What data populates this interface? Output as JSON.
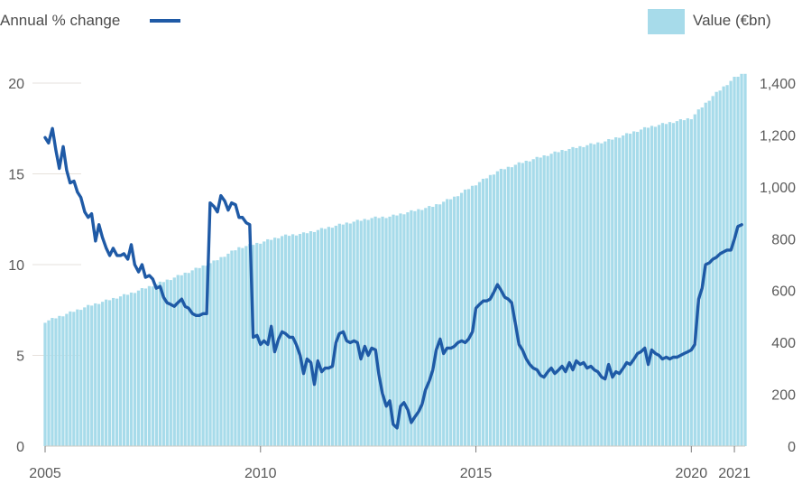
{
  "chart_data": {
    "type": "bar+line",
    "legend": {
      "line_label": "Annual % change",
      "bar_label": "Value (€bn)",
      "placement": "top"
    },
    "x_axis": {
      "range": [
        2005.0,
        2021.25
      ],
      "ticks": [
        2005,
        2010,
        2015,
        2020,
        2021
      ],
      "tick_labels": [
        "2005",
        "2010",
        "2015",
        "2020",
        "2021"
      ]
    },
    "y_left": {
      "range": [
        0,
        20
      ],
      "ticks": [
        0,
        5,
        10,
        15,
        20
      ],
      "tick_labels": [
        "0",
        "5",
        "10",
        "15",
        "20"
      ]
    },
    "y_right": {
      "range": [
        0,
        1400
      ],
      "ticks": [
        0,
        200,
        400,
        600,
        800,
        1000,
        1200,
        1400
      ],
      "tick_labels": [
        "0",
        "200",
        "400",
        "600",
        "800",
        "1,000",
        "1,200",
        "1,400"
      ]
    },
    "bar_series": {
      "name": "Value (€bn)",
      "color": "#a7dbea",
      "anchors": [
        [
          2005.0,
          480
        ],
        [
          2006.0,
          540
        ],
        [
          2007.0,
          590
        ],
        [
          2008.0,
          650
        ],
        [
          2008.9,
          710
        ],
        [
          2009.5,
          765
        ],
        [
          2010.0,
          785
        ],
        [
          2010.5,
          810
        ],
        [
          2011.0,
          820
        ],
        [
          2012.0,
          860
        ],
        [
          2012.6,
          880
        ],
        [
          2013.0,
          885
        ],
        [
          2013.5,
          905
        ],
        [
          2014.0,
          925
        ],
        [
          2014.5,
          960
        ],
        [
          2015.0,
          1010
        ],
        [
          2015.5,
          1060
        ],
        [
          2016.0,
          1090
        ],
        [
          2017.0,
          1140
        ],
        [
          2018.0,
          1175
        ],
        [
          2019.0,
          1230
        ],
        [
          2020.0,
          1265
        ],
        [
          2020.2,
          1300
        ],
        [
          2020.5,
          1350
        ],
        [
          2021.0,
          1420
        ],
        [
          2021.25,
          1440
        ]
      ]
    },
    "line_series": {
      "name": "Annual % change",
      "color": "#1f5aa6",
      "points": [
        [
          2005.0,
          17.0
        ],
        [
          2005.08,
          16.7
        ],
        [
          2005.17,
          17.5
        ],
        [
          2005.25,
          16.3
        ],
        [
          2005.33,
          15.3
        ],
        [
          2005.42,
          16.5
        ],
        [
          2005.5,
          15.2
        ],
        [
          2005.58,
          14.5
        ],
        [
          2005.67,
          14.6
        ],
        [
          2005.75,
          14.0
        ],
        [
          2005.83,
          13.7
        ],
        [
          2005.92,
          12.9
        ],
        [
          2006.0,
          12.6
        ],
        [
          2006.08,
          12.8
        ],
        [
          2006.17,
          11.3
        ],
        [
          2006.25,
          12.2
        ],
        [
          2006.33,
          11.5
        ],
        [
          2006.42,
          10.9
        ],
        [
          2006.5,
          10.5
        ],
        [
          2006.58,
          10.9
        ],
        [
          2006.67,
          10.5
        ],
        [
          2006.75,
          10.5
        ],
        [
          2006.83,
          10.6
        ],
        [
          2006.92,
          10.3
        ],
        [
          2007.0,
          11.1
        ],
        [
          2007.08,
          10.0
        ],
        [
          2007.17,
          9.6
        ],
        [
          2007.25,
          10.0
        ],
        [
          2007.33,
          9.3
        ],
        [
          2007.42,
          9.4
        ],
        [
          2007.5,
          9.2
        ],
        [
          2007.58,
          8.7
        ],
        [
          2007.67,
          8.8
        ],
        [
          2007.75,
          8.2
        ],
        [
          2007.83,
          7.9
        ],
        [
          2007.92,
          7.8
        ],
        [
          2008.0,
          7.7
        ],
        [
          2008.08,
          7.9
        ],
        [
          2008.17,
          8.1
        ],
        [
          2008.25,
          7.7
        ],
        [
          2008.33,
          7.6
        ],
        [
          2008.42,
          7.3
        ],
        [
          2008.5,
          7.2
        ],
        [
          2008.58,
          7.2
        ],
        [
          2008.67,
          7.3
        ],
        [
          2008.75,
          7.3
        ],
        [
          2008.83,
          13.4
        ],
        [
          2008.92,
          13.2
        ],
        [
          2009.0,
          12.9
        ],
        [
          2009.08,
          13.8
        ],
        [
          2009.17,
          13.5
        ],
        [
          2009.25,
          13.0
        ],
        [
          2009.33,
          13.4
        ],
        [
          2009.42,
          13.3
        ],
        [
          2009.5,
          12.6
        ],
        [
          2009.58,
          12.6
        ],
        [
          2009.67,
          12.3
        ],
        [
          2009.75,
          12.2
        ],
        [
          2009.83,
          6.0
        ],
        [
          2009.92,
          6.1
        ],
        [
          2010.0,
          5.6
        ],
        [
          2010.08,
          5.8
        ],
        [
          2010.17,
          5.6
        ],
        [
          2010.25,
          6.6
        ],
        [
          2010.33,
          5.2
        ],
        [
          2010.42,
          5.9
        ],
        [
          2010.5,
          6.3
        ],
        [
          2010.58,
          6.2
        ],
        [
          2010.67,
          6.0
        ],
        [
          2010.75,
          6.0
        ],
        [
          2010.83,
          5.6
        ],
        [
          2010.92,
          5.0
        ],
        [
          2011.0,
          4.0
        ],
        [
          2011.08,
          4.8
        ],
        [
          2011.17,
          4.6
        ],
        [
          2011.25,
          3.4
        ],
        [
          2011.33,
          4.7
        ],
        [
          2011.42,
          4.1
        ],
        [
          2011.5,
          4.3
        ],
        [
          2011.58,
          4.3
        ],
        [
          2011.67,
          4.4
        ],
        [
          2011.75,
          5.7
        ],
        [
          2011.83,
          6.2
        ],
        [
          2011.92,
          6.3
        ],
        [
          2012.0,
          5.8
        ],
        [
          2012.08,
          5.7
        ],
        [
          2012.17,
          5.8
        ],
        [
          2012.25,
          5.7
        ],
        [
          2012.33,
          4.8
        ],
        [
          2012.42,
          5.5
        ],
        [
          2012.5,
          5.0
        ],
        [
          2012.58,
          5.4
        ],
        [
          2012.67,
          5.3
        ],
        [
          2012.75,
          3.9
        ],
        [
          2012.83,
          2.9
        ],
        [
          2012.92,
          2.2
        ],
        [
          2013.0,
          2.5
        ],
        [
          2013.08,
          1.2
        ],
        [
          2013.17,
          1.0
        ],
        [
          2013.25,
          2.2
        ],
        [
          2013.33,
          2.4
        ],
        [
          2013.42,
          2.0
        ],
        [
          2013.5,
          1.3
        ],
        [
          2013.58,
          1.6
        ],
        [
          2013.67,
          1.9
        ],
        [
          2013.75,
          2.3
        ],
        [
          2013.83,
          3.1
        ],
        [
          2013.92,
          3.6
        ],
        [
          2014.0,
          4.2
        ],
        [
          2014.08,
          5.3
        ],
        [
          2014.17,
          5.9
        ],
        [
          2014.25,
          5.1
        ],
        [
          2014.33,
          5.4
        ],
        [
          2014.42,
          5.4
        ],
        [
          2014.5,
          5.5
        ],
        [
          2014.58,
          5.7
        ],
        [
          2014.67,
          5.8
        ],
        [
          2014.75,
          5.7
        ],
        [
          2014.83,
          5.9
        ],
        [
          2014.92,
          6.3
        ],
        [
          2015.0,
          7.6
        ],
        [
          2015.08,
          7.8
        ],
        [
          2015.17,
          8.0
        ],
        [
          2015.25,
          8.0
        ],
        [
          2015.33,
          8.1
        ],
        [
          2015.42,
          8.5
        ],
        [
          2015.5,
          8.9
        ],
        [
          2015.58,
          8.6
        ],
        [
          2015.67,
          8.2
        ],
        [
          2015.75,
          8.1
        ],
        [
          2015.83,
          7.9
        ],
        [
          2015.92,
          6.7
        ],
        [
          2016.0,
          5.6
        ],
        [
          2016.08,
          5.3
        ],
        [
          2016.17,
          4.8
        ],
        [
          2016.25,
          4.5
        ],
        [
          2016.33,
          4.3
        ],
        [
          2016.42,
          4.2
        ],
        [
          2016.5,
          3.9
        ],
        [
          2016.58,
          3.8
        ],
        [
          2016.67,
          4.1
        ],
        [
          2016.75,
          4.3
        ],
        [
          2016.83,
          4.0
        ],
        [
          2016.92,
          4.2
        ],
        [
          2017.0,
          4.4
        ],
        [
          2017.08,
          4.1
        ],
        [
          2017.17,
          4.6
        ],
        [
          2017.25,
          4.2
        ],
        [
          2017.33,
          4.7
        ],
        [
          2017.42,
          4.5
        ],
        [
          2017.5,
          4.6
        ],
        [
          2017.58,
          4.3
        ],
        [
          2017.67,
          4.4
        ],
        [
          2017.75,
          4.2
        ],
        [
          2017.83,
          4.1
        ],
        [
          2017.92,
          3.8
        ],
        [
          2018.0,
          3.7
        ],
        [
          2018.08,
          4.5
        ],
        [
          2018.17,
          3.8
        ],
        [
          2018.25,
          4.1
        ],
        [
          2018.33,
          4.0
        ],
        [
          2018.42,
          4.3
        ],
        [
          2018.5,
          4.6
        ],
        [
          2018.58,
          4.5
        ],
        [
          2018.67,
          4.8
        ],
        [
          2018.75,
          5.1
        ],
        [
          2018.83,
          5.2
        ],
        [
          2018.92,
          5.4
        ],
        [
          2019.0,
          4.5
        ],
        [
          2019.08,
          5.3
        ],
        [
          2019.17,
          5.1
        ],
        [
          2019.25,
          5.0
        ],
        [
          2019.33,
          4.8
        ],
        [
          2019.42,
          4.9
        ],
        [
          2019.5,
          4.8
        ],
        [
          2019.58,
          4.9
        ],
        [
          2019.67,
          4.9
        ],
        [
          2019.75,
          5.0
        ],
        [
          2019.83,
          5.1
        ],
        [
          2019.92,
          5.2
        ],
        [
          2020.0,
          5.3
        ],
        [
          2020.08,
          5.6
        ],
        [
          2020.17,
          8.1
        ],
        [
          2020.25,
          8.7
        ],
        [
          2020.33,
          10.0
        ],
        [
          2020.42,
          10.1
        ],
        [
          2020.5,
          10.3
        ],
        [
          2020.58,
          10.4
        ],
        [
          2020.67,
          10.6
        ],
        [
          2020.75,
          10.7
        ],
        [
          2020.83,
          10.8
        ],
        [
          2020.92,
          10.8
        ],
        [
          2021.0,
          11.4
        ],
        [
          2021.08,
          12.1
        ],
        [
          2021.17,
          12.2
        ]
      ]
    }
  }
}
